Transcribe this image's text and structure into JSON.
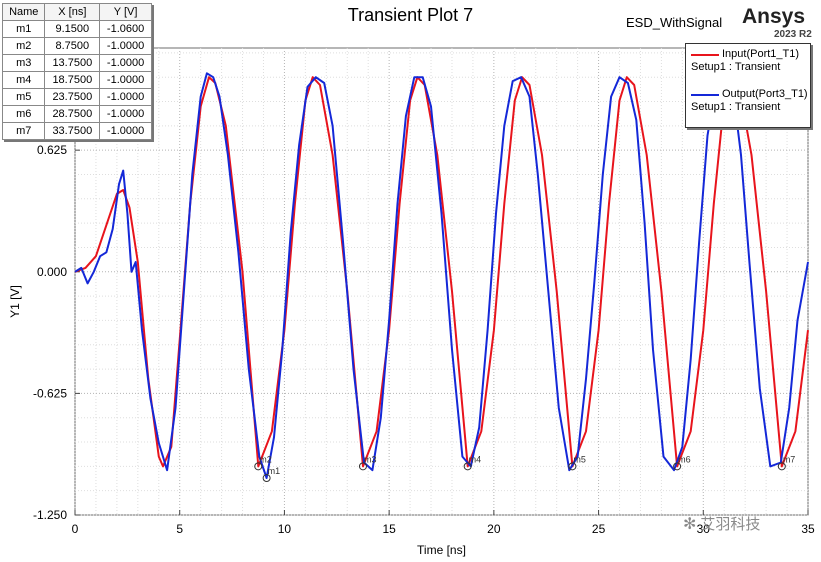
{
  "header": {
    "title": "Transient Plot 7",
    "design_name": "ESD_WithSignal",
    "brand": "Ansys",
    "brand_version": "2023 R2"
  },
  "marker_table": {
    "headers": [
      "Name",
      "X [ns]",
      "Y [V]"
    ],
    "rows": [
      [
        "m1",
        "9.1500",
        "-1.0600"
      ],
      [
        "m2",
        "8.7500",
        "-1.0000"
      ],
      [
        "m3",
        "13.7500",
        "-1.0000"
      ],
      [
        "m4",
        "18.7500",
        "-1.0000"
      ],
      [
        "m5",
        "23.7500",
        "-1.0000"
      ],
      [
        "m6",
        "28.7500",
        "-1.0000"
      ],
      [
        "m7",
        "33.7500",
        "-1.0000"
      ]
    ]
  },
  "legend": {
    "entries": [
      {
        "name": "Input(Port1_T1)",
        "setup": "Setup1 : Transient",
        "color": "#e8141c"
      },
      {
        "name": "Output(Port3_T1)",
        "setup": "Setup1 : Transient",
        "color": "#1428d8"
      }
    ]
  },
  "watermark": {
    "text": "艾羽科技",
    "icon": "wechat-icon"
  },
  "chart_data": {
    "type": "line",
    "title": "Transient Plot 7",
    "xlabel": "Time [ns]",
    "ylabel": "Y1 [V]",
    "xlim": [
      0,
      35
    ],
    "ylim": [
      -1.25,
      1.15
    ],
    "x_ticks": [
      0,
      5,
      10,
      15,
      20,
      25,
      30,
      35
    ],
    "x_tick_labels": [
      "0",
      "5",
      "10",
      "15",
      "20",
      "25",
      "30",
      "35"
    ],
    "y_ticks": [
      -1.25,
      -0.625,
      0.0,
      0.625
    ],
    "y_tick_labels": [
      "-1.250",
      "-0.625",
      "0.000",
      "0.625"
    ],
    "grid": true,
    "series": [
      {
        "name": "Input(Port1_T1)",
        "color": "#e8141c",
        "x": [
          0,
          0.5,
          1.0,
          1.5,
          2.0,
          2.3,
          2.6,
          3.0,
          3.5,
          4.0,
          4.2,
          4.6,
          5.0,
          5.5,
          6.0,
          6.4,
          6.7,
          7.2,
          8.0,
          8.75,
          9.4,
          10.0,
          10.5,
          11.0,
          11.35,
          11.7,
          12.3,
          13.0,
          13.75,
          14.4,
          15.0,
          15.5,
          16.0,
          16.35,
          16.7,
          17.3,
          18.0,
          18.75,
          19.4,
          20.0,
          20.5,
          21.0,
          21.35,
          21.7,
          22.3,
          23.0,
          23.75,
          24.4,
          25.0,
          25.5,
          26.0,
          26.35,
          26.7,
          27.3,
          28.0,
          28.75,
          29.4,
          30.0,
          30.5,
          31.0,
          31.35,
          31.7,
          32.3,
          33.0,
          33.75,
          34.4,
          35.0
        ],
        "y": [
          0.0,
          0.02,
          0.08,
          0.24,
          0.4,
          0.42,
          0.33,
          0.05,
          -0.55,
          -0.95,
          -1.0,
          -0.9,
          -0.35,
          0.35,
          0.85,
          1.0,
          0.97,
          0.75,
          0.0,
          -1.0,
          -0.82,
          -0.3,
          0.35,
          0.88,
          1.0,
          0.96,
          0.6,
          -0.1,
          -1.0,
          -0.82,
          -0.3,
          0.35,
          0.88,
          1.0,
          0.96,
          0.6,
          -0.1,
          -1.0,
          -0.82,
          -0.3,
          0.35,
          0.88,
          1.0,
          0.96,
          0.6,
          -0.1,
          -1.0,
          -0.82,
          -0.3,
          0.35,
          0.88,
          1.0,
          0.96,
          0.6,
          -0.1,
          -1.0,
          -0.82,
          -0.3,
          0.35,
          0.88,
          1.0,
          0.96,
          0.6,
          -0.1,
          -1.0,
          -0.82,
          -0.3
        ]
      },
      {
        "name": "Output(Port3_T1)",
        "color": "#1428d8",
        "x": [
          0,
          0.3,
          0.6,
          0.9,
          1.2,
          1.5,
          1.8,
          2.1,
          2.3,
          2.5,
          2.7,
          2.9,
          3.2,
          3.6,
          4.0,
          4.4,
          4.8,
          5.2,
          5.6,
          6.0,
          6.3,
          6.6,
          6.9,
          7.3,
          7.8,
          8.3,
          8.8,
          9.15,
          9.5,
          9.9,
          10.3,
          10.7,
          11.1,
          11.5,
          11.9,
          12.3,
          12.8,
          13.3,
          13.8,
          14.2,
          14.6,
          15.0,
          15.4,
          15.8,
          16.2,
          16.6,
          17.0,
          17.5,
          18.0,
          18.5,
          18.9,
          19.3,
          19.7,
          20.1,
          20.5,
          20.9,
          21.3,
          21.7,
          22.1,
          22.6,
          23.1,
          23.6,
          24.0,
          24.4,
          24.8,
          25.2,
          25.6,
          26.0,
          26.4,
          26.8,
          27.2,
          27.6,
          28.1,
          28.6,
          29.0,
          29.4,
          29.8,
          30.2,
          30.6,
          31.0,
          31.4,
          31.8,
          32.2,
          32.7,
          33.2,
          33.7,
          34.1,
          34.5,
          35.0
        ],
        "y": [
          0.0,
          0.02,
          -0.06,
          0.0,
          0.08,
          0.1,
          0.22,
          0.45,
          0.52,
          0.3,
          0.0,
          0.05,
          -0.3,
          -0.65,
          -0.88,
          -1.02,
          -0.7,
          -0.1,
          0.5,
          0.9,
          1.02,
          1.0,
          0.9,
          0.6,
          0.1,
          -0.5,
          -0.95,
          -1.06,
          -0.85,
          -0.4,
          0.2,
          0.65,
          0.95,
          1.0,
          0.97,
          0.75,
          0.15,
          -0.5,
          -0.98,
          -1.02,
          -0.75,
          -0.25,
          0.35,
          0.8,
          1.0,
          1.0,
          0.85,
          0.3,
          -0.4,
          -0.95,
          -1.0,
          -0.8,
          -0.3,
          0.3,
          0.75,
          0.98,
          1.0,
          0.9,
          0.5,
          -0.1,
          -0.7,
          -1.02,
          -0.95,
          -0.55,
          -0.05,
          0.5,
          0.9,
          1.0,
          0.97,
          0.78,
          0.25,
          -0.4,
          -0.95,
          -1.02,
          -0.9,
          -0.45,
          0.15,
          0.7,
          0.96,
          1.0,
          0.95,
          0.6,
          0.05,
          -0.6,
          -1.0,
          -0.98,
          -0.7,
          -0.25,
          0.05
        ]
      }
    ]
  }
}
